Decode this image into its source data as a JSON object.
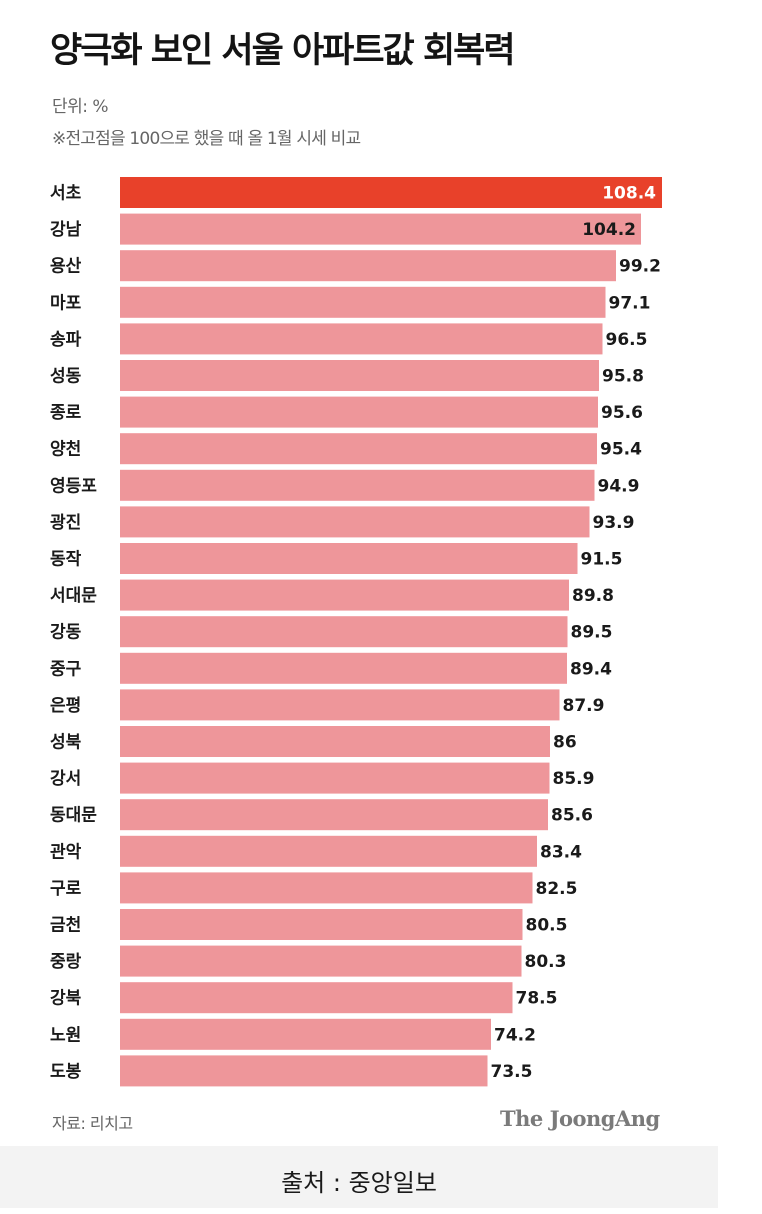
{
  "header": {
    "title": "양극화 보인 서울 아파트값 회복력",
    "unit": "단위: %",
    "note": "※전고점을 100으로 했을 때 올 1월 시세 비교"
  },
  "footer": {
    "source": "자료: 리치고",
    "logo": "The JoongAng",
    "caption": "출처 : 중앙일보"
  },
  "colors": {
    "highlight": "#e8412a",
    "bar": "#ee969a"
  },
  "chart_data": {
    "type": "bar",
    "orientation": "horizontal",
    "categories": [
      "서초",
      "강남",
      "용산",
      "마포",
      "송파",
      "성동",
      "종로",
      "양천",
      "영등포",
      "광진",
      "동작",
      "서대문",
      "강동",
      "중구",
      "은평",
      "성북",
      "강서",
      "동대문",
      "관악",
      "구로",
      "금천",
      "중랑",
      "강북",
      "노원",
      "도봉"
    ],
    "values": [
      108.4,
      104.2,
      99.2,
      97.1,
      96.5,
      95.8,
      95.6,
      95.4,
      94.9,
      93.9,
      91.5,
      89.8,
      89.5,
      89.4,
      87.9,
      86,
      85.9,
      85.6,
      83.4,
      82.5,
      80.5,
      80.3,
      78.5,
      74.2,
      73.5
    ],
    "value_labels": [
      "108.4",
      "104.2",
      "99.2",
      "97.1",
      "96.5",
      "95.8",
      "95.6",
      "95.4",
      "94.9",
      "93.9",
      "91.5",
      "89.8",
      "89.5",
      "89.4",
      "87.9",
      "86",
      "85.9",
      "85.6",
      "83.4",
      "82.5",
      "80.5",
      "80.3",
      "78.5",
      "74.2",
      "73.5"
    ],
    "highlight_index": 0,
    "xlim": [
      0,
      108.4
    ]
  }
}
